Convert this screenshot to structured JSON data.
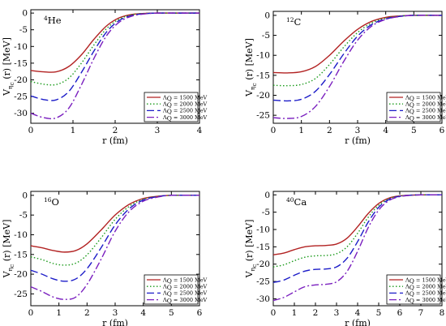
{
  "figure": {
    "ylabel_main": "V",
    "ylabel_sub": "η",
    "ylabel_sub2": "c",
    "ylabel_rest": "(r)  [MeV]",
    "xlabel": "r (fm)"
  },
  "legend_labels": [
    {
      "prefix": "Λ",
      "sub": "Q",
      "text": "= 1500 MeV"
    },
    {
      "prefix": "Λ",
      "sub": "Q",
      "text": "= 2000 MeV"
    },
    {
      "prefix": "Λ",
      "sub": "Q",
      "text": "= 2500 MeV"
    },
    {
      "prefix": "Λ",
      "sub": "Q",
      "text": "= 3000 MeV"
    }
  ],
  "styles": [
    {
      "color": "#b22222",
      "dash": ""
    },
    {
      "color": "#1a9a1a",
      "dash": "1.5,2.5"
    },
    {
      "color": "#1c1cc8",
      "dash": "9,4"
    },
    {
      "color": "#7a1fbf",
      "dash": "9,3,2,3"
    }
  ],
  "chart_data": [
    {
      "type": "line",
      "nucleus_mass": "4",
      "nucleus_symbol": "He",
      "xlim": [
        0,
        4
      ],
      "xticks": [
        0,
        1,
        2,
        3,
        4
      ],
      "ylim": [
        -33,
        1
      ],
      "yticks": [
        0,
        -5,
        -10,
        -15,
        -20,
        -25,
        -30
      ],
      "series": [
        {
          "name": "ΛQ = 1500 MeV",
          "x": [
            0,
            0.3,
            0.6,
            0.9,
            1.2,
            1.5,
            1.8,
            2.1,
            2.4,
            2.7,
            3.0,
            3.5,
            4.0
          ],
          "y": [
            -17.2,
            -17.6,
            -17.6,
            -16.0,
            -12.5,
            -7.8,
            -3.8,
            -1.4,
            -0.4,
            -0.1,
            0,
            0,
            0
          ]
        },
        {
          "name": "ΛQ = 2000 MeV",
          "x": [
            0,
            0.3,
            0.6,
            0.9,
            1.2,
            1.5,
            1.8,
            2.1,
            2.4,
            2.7,
            3.0,
            3.5,
            4.0
          ],
          "y": [
            -20.5,
            -21.3,
            -21.4,
            -19.5,
            -15.0,
            -9.5,
            -4.6,
            -1.8,
            -0.5,
            -0.1,
            0,
            0,
            0
          ]
        },
        {
          "name": "ΛQ = 2500 MeV",
          "x": [
            0,
            0.3,
            0.6,
            0.9,
            1.2,
            1.5,
            1.8,
            2.1,
            2.4,
            2.7,
            3.0,
            3.5,
            4.0
          ],
          "y": [
            -24.8,
            -25.9,
            -26.0,
            -23.5,
            -17.8,
            -11.3,
            -5.6,
            -2.2,
            -0.7,
            -0.2,
            0,
            0,
            0
          ]
        },
        {
          "name": "ΛQ = 3000 MeV",
          "x": [
            0,
            0.3,
            0.6,
            0.9,
            1.2,
            1.5,
            1.8,
            2.1,
            2.4,
            2.7,
            3.0,
            3.5,
            4.0
          ],
          "y": [
            -30.0,
            -31.3,
            -31.4,
            -28.5,
            -21.5,
            -13.5,
            -6.7,
            -2.7,
            -0.9,
            -0.25,
            0,
            0,
            0
          ]
        }
      ]
    },
    {
      "type": "line",
      "nucleus_mass": "12",
      "nucleus_symbol": "C",
      "xlim": [
        0,
        6
      ],
      "xticks": [
        0,
        1,
        2,
        3,
        4,
        5,
        6
      ],
      "ylim": [
        -27,
        1
      ],
      "yticks": [
        0,
        -5,
        -10,
        -15,
        -20,
        -25
      ],
      "series": [
        {
          "name": "ΛQ = 1500 MeV",
          "x": [
            0,
            0.5,
            1.0,
            1.5,
            2.0,
            2.5,
            3.0,
            3.5,
            4.0,
            4.5,
            5.0,
            6.0
          ],
          "y": [
            -14.3,
            -14.4,
            -14.1,
            -12.8,
            -10.0,
            -6.5,
            -3.5,
            -1.5,
            -0.5,
            -0.15,
            0,
            0
          ]
        },
        {
          "name": "ΛQ = 2000 MeV",
          "x": [
            0,
            0.5,
            1.0,
            1.5,
            2.0,
            2.5,
            3.0,
            3.5,
            4.0,
            4.5,
            5.0,
            6.0
          ],
          "y": [
            -17.5,
            -17.6,
            -17.3,
            -15.8,
            -12.3,
            -8.0,
            -4.3,
            -1.9,
            -0.7,
            -0.2,
            0,
            0
          ]
        },
        {
          "name": "ΛQ = 2500 MeV",
          "x": [
            0,
            0.5,
            1.0,
            1.5,
            2.0,
            2.5,
            3.0,
            3.5,
            4.0,
            4.5,
            5.0,
            6.0
          ],
          "y": [
            -21.2,
            -21.4,
            -21.0,
            -19.0,
            -14.8,
            -9.7,
            -5.2,
            -2.3,
            -0.9,
            -0.25,
            0,
            0
          ]
        },
        {
          "name": "ΛQ = 3000 MeV",
          "x": [
            0,
            0.5,
            1.0,
            1.5,
            2.0,
            2.5,
            3.0,
            3.5,
            4.0,
            4.5,
            5.0,
            6.0
          ],
          "y": [
            -25.6,
            -25.8,
            -25.3,
            -22.8,
            -17.8,
            -11.6,
            -6.2,
            -2.7,
            -1.0,
            -0.3,
            0,
            0
          ]
        }
      ]
    },
    {
      "type": "line",
      "nucleus_mass": "16",
      "nucleus_symbol": "O",
      "xlim": [
        0,
        6
      ],
      "xticks": [
        0,
        1,
        2,
        3,
        4,
        5,
        6
      ],
      "ylim": [
        -28,
        1
      ],
      "yticks": [
        0,
        -5,
        -10,
        -15,
        -20,
        -25
      ],
      "series": [
        {
          "name": "ΛQ = 1500 MeV",
          "x": [
            0,
            0.4,
            0.8,
            1.2,
            1.6,
            2.0,
            2.5,
            3.0,
            3.5,
            4.0,
            4.5,
            5.0,
            6.0
          ],
          "y": [
            -12.8,
            -13.3,
            -14.0,
            -14.4,
            -14.0,
            -12.3,
            -8.8,
            -5.0,
            -2.3,
            -0.8,
            -0.25,
            0,
            0
          ]
        },
        {
          "name": "ΛQ = 2000 MeV",
          "x": [
            0,
            0.4,
            0.8,
            1.2,
            1.6,
            2.0,
            2.5,
            3.0,
            3.5,
            4.0,
            4.5,
            5.0,
            6.0
          ],
          "y": [
            -15.6,
            -16.3,
            -17.3,
            -17.7,
            -17.2,
            -15.1,
            -10.8,
            -6.1,
            -2.8,
            -1.0,
            -0.3,
            0,
            0
          ]
        },
        {
          "name": "ΛQ = 2500 MeV",
          "x": [
            0,
            0.4,
            0.8,
            1.2,
            1.6,
            2.0,
            2.5,
            3.0,
            3.5,
            4.0,
            4.5,
            5.0,
            6.0
          ],
          "y": [
            -19.0,
            -20.0,
            -21.2,
            -21.8,
            -21.2,
            -18.6,
            -13.3,
            -7.5,
            -3.4,
            -1.2,
            -0.35,
            0,
            0
          ]
        },
        {
          "name": "ΛQ = 3000 MeV",
          "x": [
            0,
            0.4,
            0.8,
            1.2,
            1.6,
            2.0,
            2.5,
            3.0,
            3.5,
            4.0,
            4.5,
            5.0,
            6.0
          ],
          "y": [
            -23.2,
            -24.4,
            -25.8,
            -26.4,
            -25.8,
            -22.6,
            -16.2,
            -9.1,
            -4.1,
            -1.5,
            -0.45,
            0,
            0
          ]
        }
      ]
    },
    {
      "type": "line",
      "nucleus_mass": "40",
      "nucleus_symbol": "Ca",
      "xlim": [
        0,
        8
      ],
      "xticks": [
        0,
        1,
        2,
        3,
        4,
        5,
        6,
        7,
        8
      ],
      "ylim": [
        -32,
        1
      ],
      "yticks": [
        0,
        -5,
        -10,
        -15,
        -20,
        -25,
        -30
      ],
      "series": [
        {
          "name": "ΛQ = 1500 MeV",
          "x": [
            0,
            0.5,
            1.0,
            1.5,
            2.0,
            2.5,
            3.0,
            3.5,
            4.0,
            4.5,
            5.0,
            5.5,
            6.0,
            6.5,
            7.0,
            8.0
          ],
          "y": [
            -17.3,
            -16.8,
            -15.8,
            -15.0,
            -14.7,
            -14.6,
            -14.2,
            -12.5,
            -9.2,
            -5.4,
            -2.5,
            -0.9,
            -0.3,
            -0.1,
            0,
            0
          ]
        },
        {
          "name": "ΛQ = 2000 MeV",
          "x": [
            0,
            0.5,
            1.0,
            1.5,
            2.0,
            2.5,
            3.0,
            3.5,
            4.0,
            4.5,
            5.0,
            5.5,
            6.0,
            6.5,
            7.0,
            8.0
          ],
          "y": [
            -20.8,
            -20.2,
            -19.0,
            -18.0,
            -17.6,
            -17.5,
            -17.0,
            -15.0,
            -11.1,
            -6.5,
            -3.0,
            -1.1,
            -0.35,
            -0.1,
            0,
            0
          ]
        },
        {
          "name": "ΛQ = 2500 MeV",
          "x": [
            0,
            0.5,
            1.0,
            1.5,
            2.0,
            2.5,
            3.0,
            3.5,
            4.0,
            4.5,
            5.0,
            5.5,
            6.0,
            6.5,
            7.0,
            8.0
          ],
          "y": [
            -25.3,
            -24.6,
            -23.2,
            -22.0,
            -21.5,
            -21.4,
            -20.8,
            -18.3,
            -13.5,
            -7.9,
            -3.6,
            -1.3,
            -0.4,
            -0.1,
            0,
            0
          ]
        },
        {
          "name": "ΛQ = 3000 MeV",
          "x": [
            0,
            0.5,
            1.0,
            1.5,
            2.0,
            2.5,
            3.0,
            3.5,
            4.0,
            4.5,
            5.0,
            5.5,
            6.0,
            6.5,
            7.0,
            8.0
          ],
          "y": [
            -30.5,
            -29.6,
            -28.0,
            -26.5,
            -26.0,
            -25.8,
            -25.1,
            -22.1,
            -16.3,
            -9.5,
            -4.4,
            -1.6,
            -0.5,
            -0.15,
            0,
            0
          ]
        }
      ]
    }
  ]
}
